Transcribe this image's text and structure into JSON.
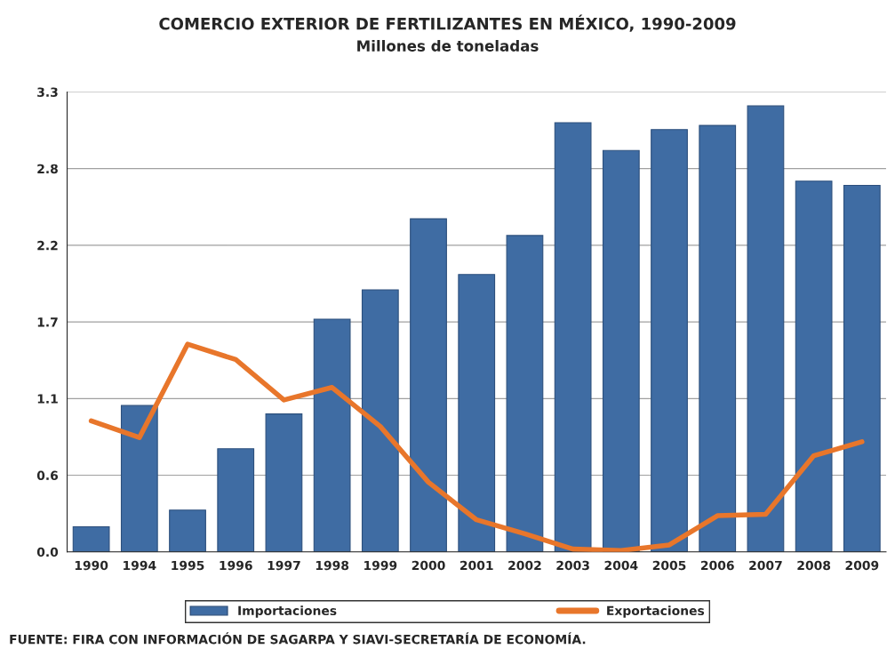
{
  "chart_data": {
    "type": "bar",
    "title": "COMERCIO EXTERIOR DE FERTILIZANTES EN MÉXICO, 1990-2009",
    "subtitle": "Millones de toneladas",
    "categories": [
      "1990",
      "1994",
      "1995",
      "1996",
      "1997",
      "1998",
      "1999",
      "2000",
      "2001",
      "2002",
      "2003",
      "2004",
      "2005",
      "2006",
      "2007",
      "2008",
      "2009"
    ],
    "series": [
      {
        "name": "Importaciones",
        "color": "#3f6ca3",
        "values": [
          0.18,
          1.05,
          0.3,
          0.74,
          0.99,
          1.67,
          1.88,
          2.39,
          1.99,
          2.27,
          3.08,
          2.88,
          3.03,
          3.06,
          3.2,
          2.66,
          2.63
        ]
      },
      {
        "name": "Exportaciones",
        "type": "line",
        "color": "#e8762b",
        "values": [
          0.94,
          0.82,
          1.49,
          1.38,
          1.09,
          1.18,
          0.9,
          0.5,
          0.23,
          0.13,
          0.02,
          0.01,
          0.05,
          0.26,
          0.27,
          0.69,
          0.79
        ]
      }
    ],
    "ylim": [
      0,
      3.3
    ],
    "yticks": [
      {
        "value": 0,
        "label": "0.0"
      },
      {
        "value": 0.55,
        "label": "0.6"
      },
      {
        "value": 1.1,
        "label": "1.1"
      },
      {
        "value": 1.65,
        "label": "1.7"
      },
      {
        "value": 2.2,
        "label": "2.2"
      },
      {
        "value": 2.75,
        "label": "2.8"
      },
      {
        "value": 3.3,
        "label": "3.3"
      }
    ],
    "grid": "y",
    "legend": "bottom",
    "marker": "none",
    "line_style": "solid",
    "annotations": [
      "FUENTE: FIRA CON INFORMACIÓN DE SAGARPA Y SIAVI-SECRETARÍA DE ECONOMÍA."
    ]
  }
}
